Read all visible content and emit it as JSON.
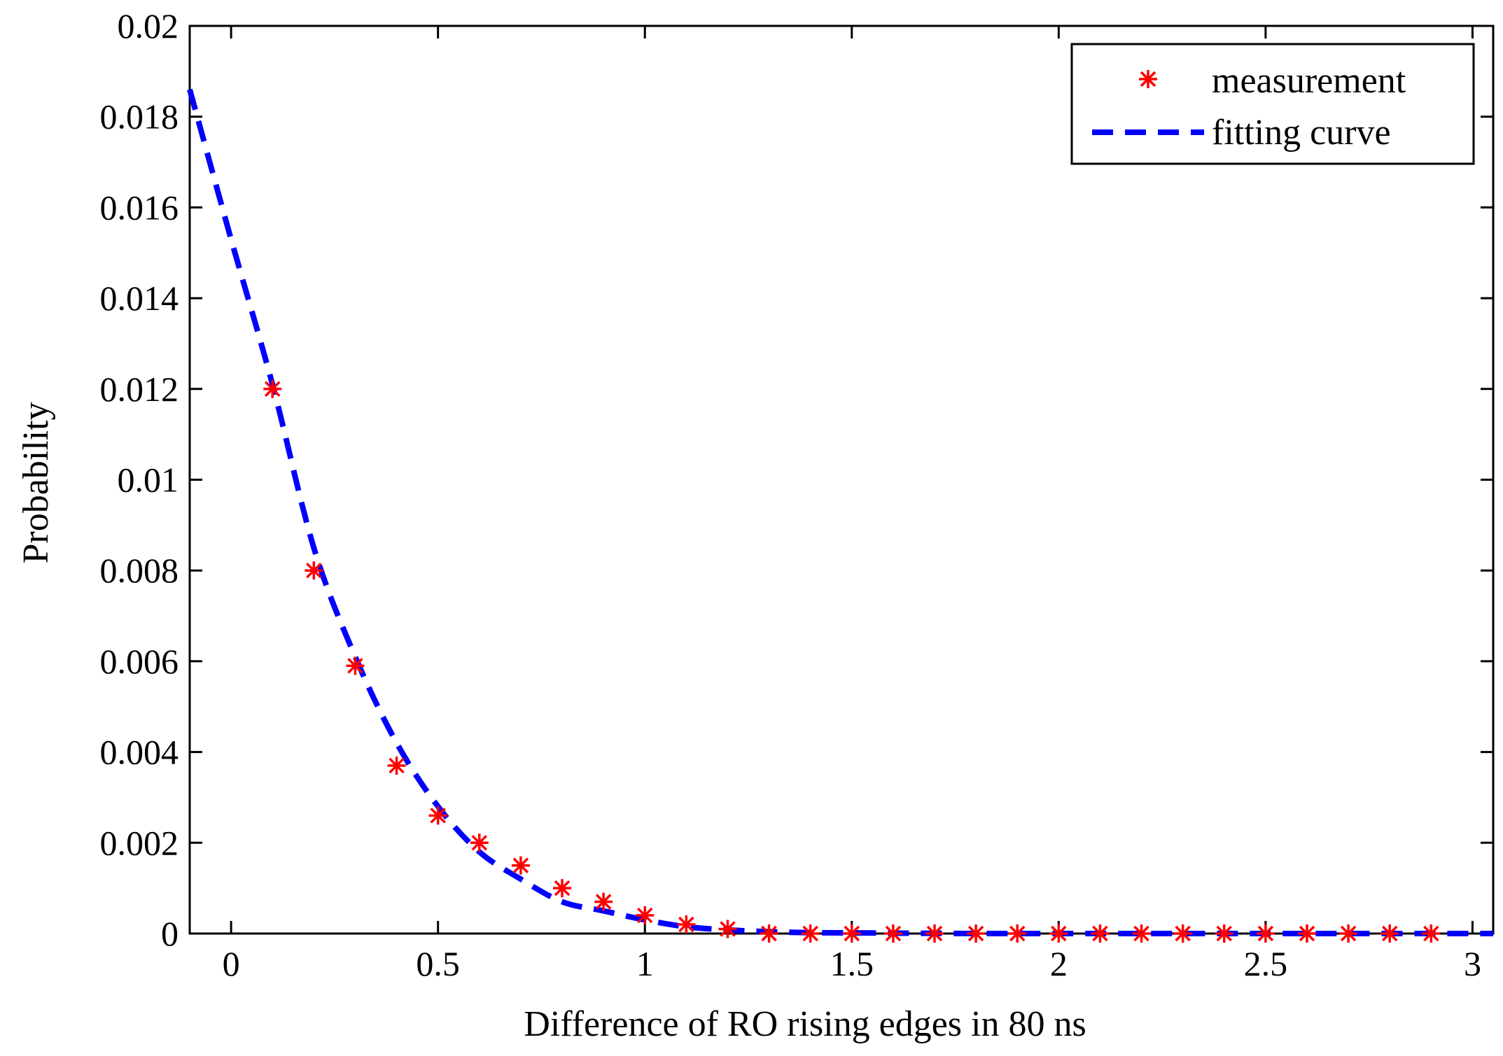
{
  "chart_data": {
    "type": "scatter",
    "title": "",
    "xlabel": "Difference of RO rising edges in 80 ns",
    "ylabel": "Probability",
    "xlim": [
      -0.1,
      3.05
    ],
    "ylim": [
      0,
      0.02
    ],
    "xticks": [
      0,
      0.5,
      1,
      1.5,
      2,
      2.5,
      3
    ],
    "xtick_labels": [
      "0",
      "0.5",
      "1",
      "1.5",
      "2",
      "2.5",
      "3"
    ],
    "yticks": [
      0,
      0.002,
      0.004,
      0.006,
      0.008,
      0.01,
      0.012,
      0.014,
      0.016,
      0.018,
      0.02
    ],
    "ytick_labels": [
      "0",
      "0.002",
      "0.004",
      "0.006",
      "0.008",
      "0.01",
      "0.012",
      "0.014",
      "0.016",
      "0.018",
      "0.02"
    ],
    "grid": false,
    "legend_position": "top-right",
    "series": [
      {
        "name": "measurement",
        "style": "red asterisk markers",
        "color": "#ff0000",
        "x": [
          0.1,
          0.2,
          0.3,
          0.4,
          0.5,
          0.6,
          0.7,
          0.8,
          0.9,
          1.0,
          1.1,
          1.2,
          1.3,
          1.4,
          1.5,
          1.6,
          1.7,
          1.8,
          1.9,
          2.0,
          2.1,
          2.2,
          2.3,
          2.4,
          2.5,
          2.6,
          2.7,
          2.8,
          2.9
        ],
        "y": [
          0.012,
          0.008,
          0.0059,
          0.0037,
          0.0026,
          0.002,
          0.0015,
          0.001,
          0.0007,
          0.0004,
          0.0002,
          0.0001,
          0,
          0,
          0,
          0,
          0,
          0,
          0,
          0,
          0,
          0,
          0,
          0,
          0,
          0,
          0,
          0,
          0
        ]
      },
      {
        "name": "fitting curve",
        "style": "blue dashed line",
        "color": "#0000ff",
        "x": [
          -0.1,
          0.0,
          0.1,
          0.2,
          0.3,
          0.4,
          0.5,
          0.6,
          0.7,
          0.8,
          0.9,
          1.0,
          1.1,
          1.2,
          1.3,
          1.4,
          1.6,
          1.8,
          2.0,
          2.5,
          3.05
        ],
        "y": [
          0.0186,
          0.0153,
          0.0121,
          0.0085,
          0.0061,
          0.0042,
          0.0028,
          0.0018,
          0.0012,
          0.0007,
          0.0005,
          0.0003,
          0.00015,
          8e-05,
          4e-05,
          2e-05,
          1e-05,
          0,
          0,
          0,
          0
        ]
      }
    ]
  }
}
